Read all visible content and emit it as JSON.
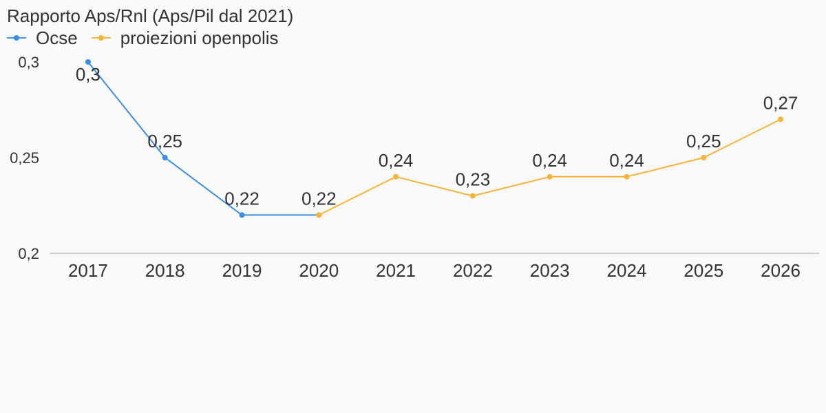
{
  "chart_data": {
    "type": "line",
    "title": "Rapporto Aps/Rnl (Aps/Pil dal 2021)",
    "categories": [
      "2017",
      "2018",
      "2019",
      "2020",
      "2021",
      "2022",
      "2023",
      "2024",
      "2025",
      "2026"
    ],
    "y_ticks": [
      "0,2",
      "0,25",
      "0,3"
    ],
    "y_tick_values": [
      0.2,
      0.25,
      0.3
    ],
    "ylim": [
      0.2,
      0.3
    ],
    "grid": false,
    "legend_position": "top-left",
    "series": [
      {
        "name": "Ocse",
        "color": "#3a8ee6",
        "values": [
          0.3,
          0.25,
          0.22,
          0.22,
          null,
          null,
          null,
          null,
          null,
          null
        ],
        "labels": [
          "0,3",
          "0,25",
          "0,22",
          null,
          null,
          null,
          null,
          null,
          null,
          null
        ]
      },
      {
        "name": "proiezioni openpolis",
        "color": "#f7b538",
        "values": [
          null,
          null,
          null,
          0.22,
          0.24,
          0.23,
          0.24,
          0.24,
          0.25,
          0.27
        ],
        "labels": [
          null,
          null,
          null,
          "0,22",
          "0,24",
          "0,23",
          "0,24",
          "0,24",
          "0,25",
          "0,27"
        ]
      }
    ]
  }
}
